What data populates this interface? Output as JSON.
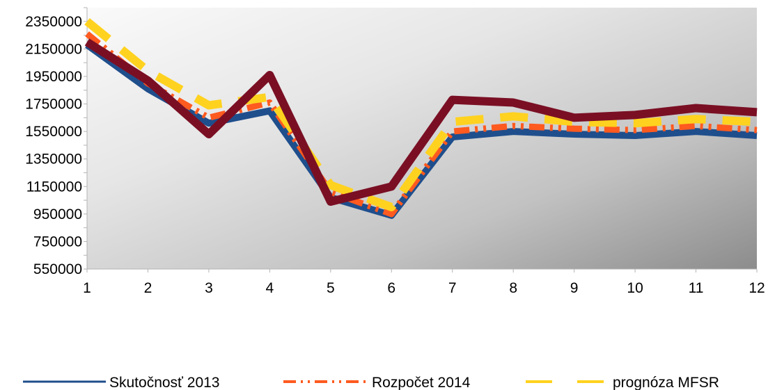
{
  "chart_data": {
    "type": "line",
    "title": "",
    "xlabel": "",
    "ylabel": "",
    "x": [
      1,
      2,
      3,
      4,
      5,
      6,
      7,
      8,
      9,
      10,
      11,
      12
    ],
    "x_tick_labels": [
      "1",
      "2",
      "3",
      "4",
      "5",
      "6",
      "7",
      "8",
      "9",
      "10",
      "11",
      "12"
    ],
    "y_tick_labels": [
      "2350000",
      "2150000",
      "1950000",
      "1750000",
      "1550000",
      "1350000",
      "1150000",
      "950000",
      "750000",
      "550000"
    ],
    "ylim": [
      550000,
      2450000
    ],
    "grid": false,
    "background": "gray gradient",
    "legend_position": "bottom",
    "series": [
      {
        "name": "Skutočnosť 2013",
        "style": "solid",
        "color": "#1f4e8c",
        "values": [
          2180000,
          1860000,
          1610000,
          1700000,
          1070000,
          940000,
          1510000,
          1550000,
          1530000,
          1520000,
          1550000,
          1520000
        ]
      },
      {
        "name": "Rozpočet 2014",
        "style": "dash-dot-dot",
        "color": "#ff5a1f",
        "values": [
          2260000,
          1900000,
          1650000,
          1760000,
          1110000,
          950000,
          1550000,
          1590000,
          1570000,
          1560000,
          1590000,
          1560000
        ]
      },
      {
        "name": "prognóza MFSR",
        "style": "long-dash",
        "color": "#ffd21f",
        "values": [
          2350000,
          1990000,
          1740000,
          1800000,
          1160000,
          1000000,
          1620000,
          1660000,
          1620000,
          1610000,
          1640000,
          1620000
        ]
      },
      {
        "name": "",
        "style": "solid-thick",
        "color": "#7a0f24",
        "values": [
          2200000,
          1920000,
          1530000,
          1960000,
          1040000,
          1150000,
          1780000,
          1760000,
          1650000,
          1670000,
          1720000,
          1690000
        ]
      }
    ]
  }
}
